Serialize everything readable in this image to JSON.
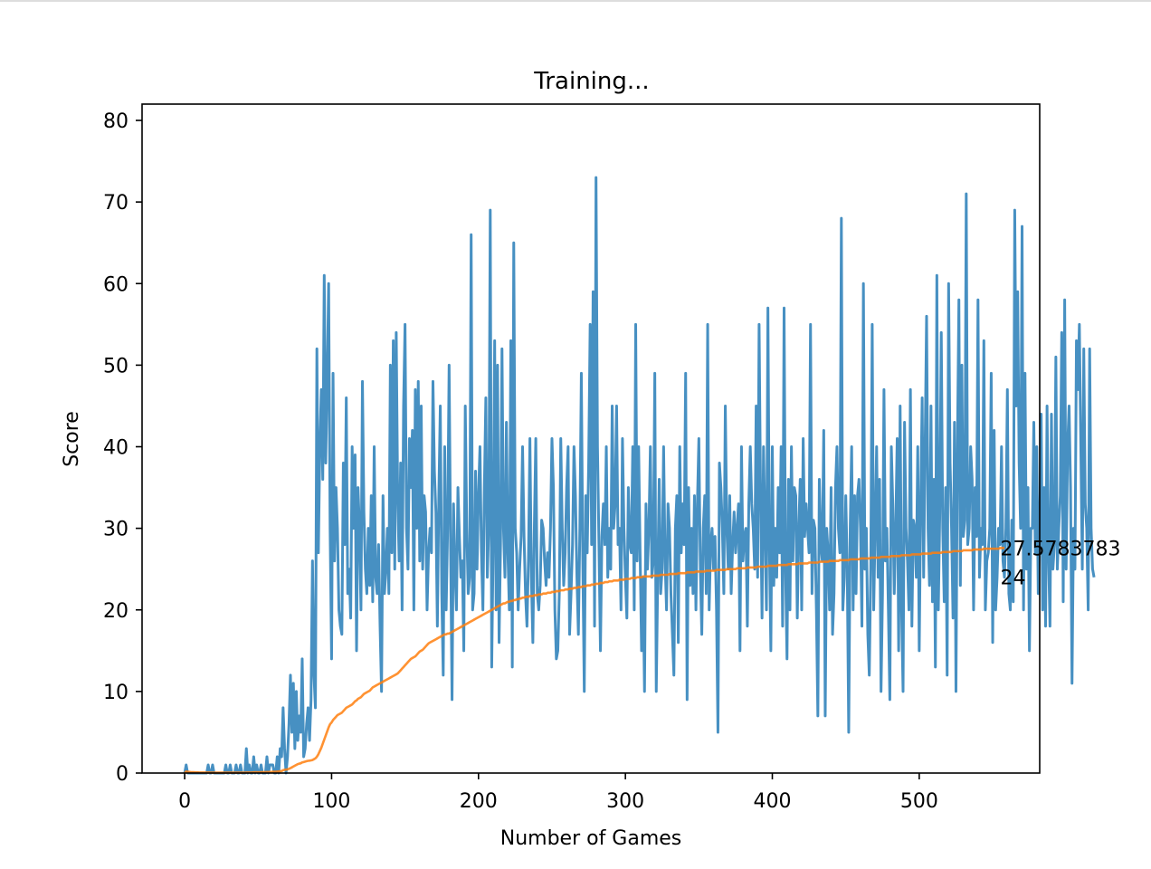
{
  "chart_data": {
    "type": "line",
    "title": "Training...",
    "xlabel": "Number of Games",
    "ylabel": "Score",
    "xlim": [
      -29,
      582
    ],
    "ylim": [
      0,
      82
    ],
    "xticks": [
      0,
      100,
      200,
      300,
      400,
      500
    ],
    "yticks": [
      0,
      10,
      20,
      30,
      40,
      50,
      60,
      70,
      80
    ],
    "grid": false,
    "annotations": [
      {
        "text": "27.5783783",
        "x": 554,
        "y": 27.58
      },
      {
        "text": "24",
        "x": 554,
        "y": 24
      }
    ],
    "series": [
      {
        "color": "#1f77b4",
        "style": "raw scores",
        "values": [
          0,
          1,
          0,
          0,
          0,
          0,
          0,
          0,
          0,
          0,
          0,
          0,
          0,
          0,
          0,
          0,
          1,
          0,
          0,
          1,
          0,
          0,
          0,
          0,
          0,
          0,
          0,
          0,
          1,
          0,
          0,
          1,
          0,
          0,
          0,
          1,
          0,
          0,
          1,
          0,
          0,
          0,
          3,
          0,
          1,
          0,
          0,
          2,
          0,
          1,
          0,
          0,
          1,
          0,
          0,
          0,
          2,
          0,
          1,
          1,
          1,
          0,
          0,
          2,
          0,
          3,
          2,
          8,
          3,
          0,
          2,
          6,
          12,
          5,
          11,
          3,
          10,
          4,
          7,
          5,
          14,
          2,
          3,
          6,
          8,
          4,
          9,
          26,
          12,
          8,
          52,
          27,
          40,
          47,
          36,
          61,
          38,
          48,
          60,
          30,
          14,
          49,
          26,
          35,
          30,
          20,
          18,
          17,
          38,
          28,
          46,
          22,
          25,
          19,
          40,
          30,
          39,
          15,
          35,
          30,
          20,
          48,
          32,
          25,
          22,
          30,
          23,
          34,
          21,
          40,
          24,
          22,
          28,
          18,
          10,
          34,
          22,
          25,
          30,
          22,
          50,
          27,
          53,
          25,
          54,
          34,
          26,
          38,
          20,
          45,
          55,
          30,
          25,
          41,
          35,
          42,
          20,
          47,
          30,
          48,
          26,
          45,
          25,
          34,
          32,
          20,
          27,
          30,
          27,
          48,
          37,
          32,
          18,
          34,
          45,
          22,
          12,
          40,
          20,
          30,
          50,
          28,
          9,
          33,
          25,
          20,
          35,
          29,
          24,
          26,
          15,
          45,
          30,
          22,
          24,
          66,
          20,
          22,
          37,
          25,
          34,
          40,
          27,
          20,
          35,
          46,
          24,
          30,
          69,
          13,
          28,
          53,
          20,
          50,
          16,
          28,
          52,
          30,
          24,
          43,
          27,
          20,
          53,
          13,
          65,
          30,
          27,
          20,
          25,
          29,
          40,
          29,
          22,
          18,
          26,
          41,
          24,
          16,
          30,
          41,
          22,
          20,
          23,
          31,
          30,
          26,
          23,
          27,
          24,
          30,
          41,
          35,
          20,
          14,
          15,
          22,
          41,
          30,
          23,
          27,
          35,
          40,
          17,
          22,
          28,
          40,
          34,
          24,
          17,
          30,
          49,
          26,
          10,
          34,
          27,
          38,
          55,
          28,
          59,
          18,
          73,
          40,
          28,
          15,
          29,
          33,
          28,
          40,
          24,
          30,
          25,
          45,
          30,
          33,
          45,
          28,
          30,
          20,
          41,
          30,
          24,
          19,
          35,
          28,
          27,
          40,
          20,
          55,
          26,
          40,
          27,
          15,
          24,
          10,
          33,
          25,
          30,
          40,
          24,
          26,
          49,
          10,
          24,
          36,
          22,
          25,
          40,
          26,
          20,
          33,
          30,
          22,
          17,
          12,
          30,
          34,
          16,
          40,
          27,
          33,
          28,
          49,
          9,
          35,
          23,
          30,
          22,
          34,
          20,
          33,
          41,
          25,
          17,
          30,
          34,
          22,
          55,
          20,
          28,
          30,
          25,
          29,
          20,
          5,
          38,
          35,
          30,
          22,
          45,
          30,
          25,
          34,
          22,
          28,
          32,
          27,
          30,
          33,
          15,
          40,
          26,
          29,
          30,
          18,
          33,
          40,
          33,
          30,
          25,
          45,
          24,
          55,
          34,
          19,
          40,
          30,
          20,
          57,
          28,
          15,
          40,
          23,
          30,
          24,
          35,
          27,
          40,
          18,
          57,
          25,
          14,
          36,
          20,
          40,
          26,
          35,
          34,
          19,
          30,
          36,
          20,
          41,
          29,
          33,
          30,
          27,
          55,
          22,
          31,
          30,
          20,
          7,
          36,
          28,
          26,
          42,
          7,
          30,
          27,
          20,
          35,
          17,
          22,
          35,
          40,
          30,
          27,
          68,
          20,
          24,
          34,
          25,
          5,
          30,
          40,
          20,
          34,
          22,
          34,
          36,
          30,
          18,
          60,
          25,
          30,
          17,
          12,
          25,
          55,
          20,
          30,
          40,
          24,
          36,
          10,
          22,
          47,
          26,
          30,
          20,
          9,
          40,
          33,
          22,
          30,
          41,
          15,
          45,
          20,
          10,
          43,
          30,
          26,
          20,
          47,
          18,
          31,
          30,
          24,
          40,
          15,
          33,
          46,
          24,
          40,
          56,
          30,
          23,
          45,
          21,
          36,
          13,
          61,
          20,
          32,
          54,
          30,
          21,
          35,
          12,
          60,
          38,
          30,
          19,
          43,
          10,
          40,
          58,
          23,
          50,
          29,
          31,
          71,
          28,
          30,
          40,
          36,
          20,
          35,
          29,
          58,
          24,
          30,
          28,
          53,
          20,
          26,
          27,
          30,
          49,
          16,
          42,
          20,
          24,
          30,
          28,
          40,
          26,
          24,
          30,
          47,
          22,
          20,
          31,
          21,
          69,
          45,
          59,
          38,
          30,
          67,
          20,
          49,
          25,
          35,
          15,
          30,
          30,
          43,
          27,
          40,
          22,
          30,
          44,
          20,
          35,
          18,
          45,
          27,
          18,
          44,
          25,
          28,
          51,
          25,
          30,
          34,
          54,
          21,
          58,
          25,
          40,
          45,
          35,
          11,
          30,
          25,
          53,
          47,
          55,
          40,
          25,
          52,
          33,
          30,
          20,
          52,
          30,
          25,
          24
        ]
      },
      {
        "color": "#ff7f0e",
        "style": "mean score",
        "values": [
          0,
          0.19,
          0.16,
          0.14,
          0.12,
          0.11,
          0.1,
          0.09,
          0.08,
          0.08,
          0.07,
          0.07,
          0.06,
          0.06,
          0.06,
          0.06,
          0.06,
          0.06,
          0.05,
          0.05,
          0.05,
          0.05,
          0.05,
          0.05,
          0.05,
          0.05,
          0.05,
          0.05,
          0.05,
          0.05,
          0.05,
          0.05,
          0.05,
          0.05,
          0.05,
          0.05,
          0.05,
          0.05,
          0.05,
          0.05,
          0.05,
          0.05,
          0.07,
          0.07,
          0.07,
          0.07,
          0.07,
          0.09,
          0.09,
          0.09,
          0.09,
          0.09,
          0.1,
          0.1,
          0.1,
          0.1,
          0.12,
          0.12,
          0.13,
          0.14,
          0.16,
          0.16,
          0.16,
          0.18,
          0.2,
          0.23,
          0.25,
          0.35,
          0.4,
          0.42,
          0.45,
          0.52,
          0.6,
          0.7,
          0.8,
          0.9,
          1,
          1.1,
          1.15,
          1.2,
          1.3,
          1.35,
          1.4,
          1.45,
          1.5,
          1.52,
          1.55,
          1.6,
          1.7,
          1.8,
          2,
          2.3,
          2.7,
          3.1,
          3.6,
          4.1,
          4.6,
          5.1,
          5.6,
          6,
          6.2,
          6.5,
          6.7,
          6.9,
          7.1,
          7.2,
          7.3,
          7.4,
          7.6,
          7.8,
          8,
          8.1,
          8.2,
          8.3,
          8.4,
          8.6,
          8.8,
          8.9,
          9.1,
          9.2,
          9.3,
          9.5,
          9.7,
          9.8,
          9.9,
          10,
          10.1,
          10.3,
          10.5,
          10.6,
          10.7,
          10.8,
          10.9,
          11,
          11.1,
          11.2,
          11.3,
          11.4,
          11.5,
          11.6,
          11.7,
          11.8,
          11.9,
          12,
          12.1,
          12.2,
          12.4,
          12.6,
          12.8,
          13,
          13.2,
          13.4,
          13.6,
          13.8,
          14,
          14.1,
          14.2,
          14.3,
          14.5,
          14.7,
          14.9,
          15,
          15.1,
          15.3,
          15.5,
          15.7,
          15.9,
          16,
          16.1,
          16.2,
          16.3,
          16.4,
          16.5,
          16.6,
          16.7,
          16.8,
          16.9,
          17,
          17,
          17.1,
          17.1,
          17.2,
          17.3,
          17.4,
          17.5,
          17.6,
          17.7,
          17.8,
          17.9,
          18,
          18.1,
          18.2,
          18.3,
          18.4,
          18.5,
          18.6,
          18.7,
          18.8,
          18.9,
          19,
          19.1,
          19.2,
          19.3,
          19.4,
          19.5,
          19.6,
          19.7,
          19.8,
          19.9,
          20,
          20.1,
          20.2,
          20.3,
          20.4,
          20.5,
          20.6,
          20.7,
          20.8,
          20.8,
          20.9,
          21,
          21,
          21.1,
          21.1,
          21.2,
          21.2,
          21.3,
          21.3,
          21.4,
          21.4,
          21.5,
          21.5,
          21.6,
          21.6,
          21.6,
          21.7,
          21.7,
          21.7,
          21.8,
          21.8,
          21.8,
          21.9,
          21.9,
          21.9,
          22,
          22,
          22,
          22.1,
          22.1,
          22.1,
          22.2,
          22.2,
          22.2,
          22.3,
          22.3,
          22.3,
          22.4,
          22.4,
          22.4,
          22.5,
          22.5,
          22.5,
          22.6,
          22.6,
          22.6,
          22.7,
          22.7,
          22.7,
          22.8,
          22.8,
          22.8,
          22.9,
          22.9,
          22.9,
          23,
          23,
          23,
          23.1,
          23.1,
          23.1,
          23.2,
          23.2,
          23.2,
          23.3,
          23.3,
          23.3,
          23.4,
          23.4,
          23.4,
          23.5,
          23.5,
          23.5,
          23.6,
          23.6,
          23.6,
          23.6,
          23.7,
          23.7,
          23.7,
          23.7,
          23.8,
          23.8,
          23.8,
          23.8,
          23.9,
          23.9,
          23.9,
          23.9,
          24,
          24,
          24,
          24,
          24.1,
          24.1,
          24.1,
          24.1,
          24.1,
          24.1,
          24.2,
          24.2,
          24.2,
          24.2,
          24.2,
          24.2,
          24.3,
          24.3,
          24.3,
          24.3,
          24.3,
          24.3,
          24.4,
          24.4,
          24.4,
          24.4,
          24.4,
          24.4,
          24.5,
          24.5,
          24.5,
          24.5,
          24.5,
          24.5,
          24.6,
          24.6,
          24.6,
          24.6,
          24.6,
          24.6,
          24.7,
          24.7,
          24.7,
          24.7,
          24.7,
          24.7,
          24.7,
          24.8,
          24.8,
          24.8,
          24.8,
          24.8,
          24.8,
          24.8,
          24.9,
          24.9,
          24.9,
          24.9,
          24.9,
          24.9,
          24.9,
          25,
          25,
          25,
          25,
          25,
          25,
          25,
          25.1,
          25.1,
          25.1,
          25.1,
          25.1,
          25.1,
          25.1,
          25.2,
          25.2,
          25.2,
          25.2,
          25.2,
          25.2,
          25.2,
          25.3,
          25.3,
          25.3,
          25.3,
          25.3,
          25.3,
          25.3,
          25.4,
          25.4,
          25.4,
          25.4,
          25.4,
          25.4,
          25.4,
          25.5,
          25.5,
          25.5,
          25.5,
          25.5,
          25.5,
          25.5,
          25.6,
          25.6,
          25.6,
          25.6,
          25.6,
          25.6,
          25.6,
          25.7,
          25.7,
          25.7,
          25.7,
          25.7,
          25.7,
          25.7,
          25.8,
          25.8,
          25.8,
          25.8,
          25.8,
          25.8,
          25.8,
          25.9,
          25.9,
          25.9,
          25.9,
          25.9,
          25.9,
          25.9,
          26,
          26,
          26,
          26,
          26,
          26,
          26,
          26.1,
          26.1,
          26.1,
          26.1,
          26.1,
          26.1,
          26.1,
          26.2,
          26.2,
          26.2,
          26.2,
          26.2,
          26.2,
          26.2,
          26.3,
          26.3,
          26.3,
          26.3,
          26.3,
          26.3,
          26.3,
          26.4,
          26.4,
          26.4,
          26.4,
          26.4,
          26.4,
          26.4,
          26.5,
          26.5,
          26.5,
          26.5,
          26.5,
          26.5,
          26.5,
          26.6,
          26.6,
          26.6,
          26.6,
          26.6,
          26.6,
          26.6,
          26.7,
          26.7,
          26.7,
          26.7,
          26.7,
          26.7,
          26.7,
          26.8,
          26.8,
          26.8,
          26.8,
          26.8,
          26.8,
          26.8,
          26.9,
          26.9,
          26.9,
          26.9,
          26.9,
          26.9,
          26.9,
          27,
          27,
          27,
          27,
          27,
          27,
          27,
          27.1,
          27.1,
          27.1,
          27.1,
          27.1,
          27.1,
          27.1,
          27.2,
          27.2,
          27.2,
          27.2,
          27.2,
          27.2,
          27.2,
          27.3,
          27.3,
          27.3,
          27.3,
          27.3,
          27.3,
          27.3,
          27.4,
          27.4,
          27.4,
          27.4,
          27.4,
          27.4,
          27.4,
          27.5,
          27.5,
          27.5,
          27.5,
          27.5,
          27.5,
          27.5,
          27.5,
          27.5,
          27.5,
          27.5,
          27.58,
          27.58,
          27.58,
          27.58
        ]
      }
    ]
  }
}
